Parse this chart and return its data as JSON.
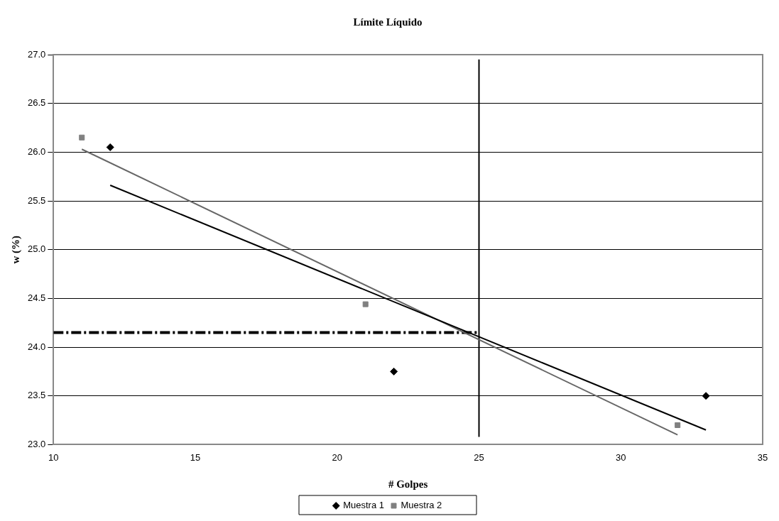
{
  "chart_data": {
    "type": "scatter",
    "title": "Límite Líquido",
    "xlabel": "# Golpes",
    "ylabel": "w (%)",
    "xlim": [
      10,
      35
    ],
    "xticks": [
      10,
      15,
      20,
      25,
      30,
      35
    ],
    "ylim": [
      23.0,
      27.0
    ],
    "yticks": [
      {
        "value": 23.0,
        "label": "23.0"
      },
      {
        "value": 23.5,
        "label": "23.5"
      },
      {
        "value": 24.0,
        "label": "24.0"
      },
      {
        "value": 24.5,
        "label": "24.5"
      },
      {
        "value": 25.0,
        "label": "25.0"
      },
      {
        "value": 25.5,
        "label": "25.5"
      },
      {
        "value": 26.0,
        "label": "26.0"
      },
      {
        "value": 26.5,
        "label": "26.5"
      },
      {
        "value": 27.0,
        "label": "27.0"
      }
    ],
    "grid": "y",
    "legend": "bottom",
    "series": [
      {
        "name": "Muestra 1",
        "type": "scatter",
        "marker": "diamond",
        "color": "#000000",
        "x": [
          12,
          22,
          33
        ],
        "values": [
          26.05,
          23.75,
          23.5
        ]
      },
      {
        "name": "Muestra 2",
        "type": "scatter",
        "marker": "square",
        "color": "#808080",
        "x": [
          11,
          21,
          32
        ],
        "values": [
          26.15,
          24.44,
          23.2
        ]
      },
      {
        "type": "line",
        "marker": "none",
        "color": "#000000",
        "x": [
          12,
          33
        ],
        "values": [
          25.66,
          23.15
        ]
      },
      {
        "type": "line",
        "marker": "none",
        "color": "#666666",
        "x": [
          11,
          32
        ],
        "values": [
          26.03,
          23.1
        ]
      },
      {
        "type": "line",
        "marker": "none",
        "color": "#000000",
        "x": [
          25,
          25
        ],
        "values": [
          23.08,
          26.95
        ]
      },
      {
        "type": "line",
        "marker": "none",
        "line_style": "dashed",
        "color": "#000000",
        "x": [
          10,
          25
        ],
        "values": [
          24.15,
          24.15
        ]
      }
    ]
  }
}
